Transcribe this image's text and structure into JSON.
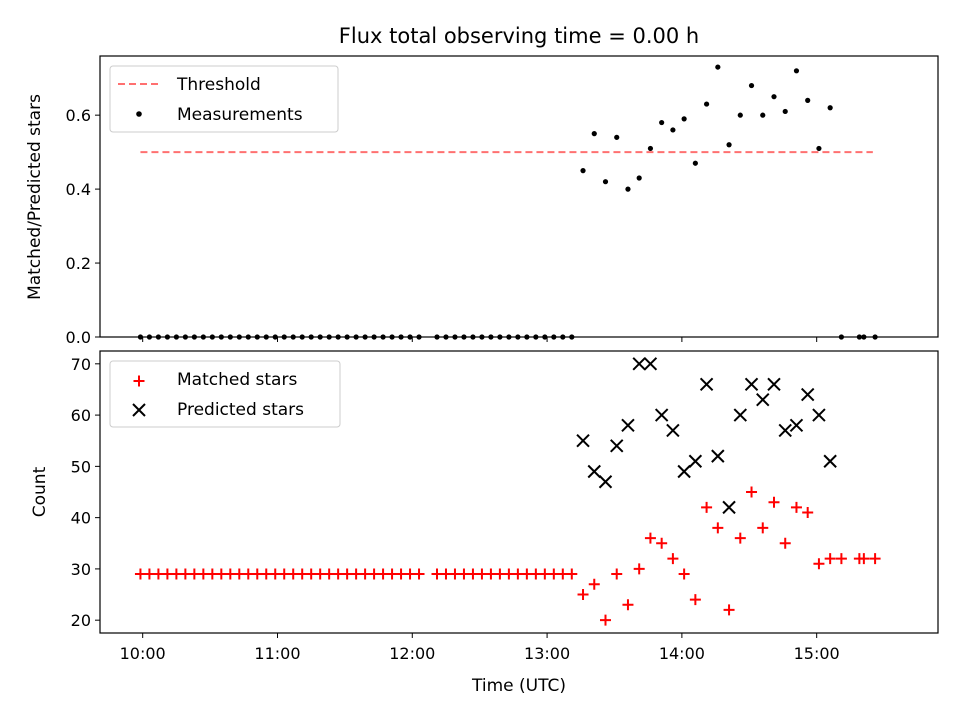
{
  "chart_data": [
    {
      "type": "scatter",
      "title": "Flux total observing time = 0.00 h",
      "xlabel": "",
      "ylabel": "Matched/Predicted stars",
      "xlim": [
        "09:41",
        "15:54"
      ],
      "ylim": [
        0,
        0.76
      ],
      "x_ticks": [],
      "y_ticks": [
        {
          "value": 0.0,
          "label": "0.0"
        },
        {
          "value": 0.2,
          "label": "0.2"
        },
        {
          "value": 0.4,
          "label": "0.4"
        },
        {
          "value": 0.6,
          "label": "0.6"
        }
      ],
      "legend": {
        "position": "upper-left",
        "entries": [
          "Threshold",
          "Measurements"
        ]
      },
      "threshold": {
        "name": "Threshold",
        "value": 0.5,
        "x_range": [
          "09:59",
          "15:25"
        ],
        "color": "#ff7070",
        "style": "dashed"
      },
      "series": [
        {
          "name": "Measurements",
          "marker": "dot",
          "color": "#000000",
          "points": [
            [
              "09:59",
              0
            ],
            [
              "10:03",
              0
            ],
            [
              "10:07",
              0
            ],
            [
              "10:11",
              0
            ],
            [
              "10:15",
              0
            ],
            [
              "10:19",
              0
            ],
            [
              "10:23",
              0
            ],
            [
              "10:27",
              0
            ],
            [
              "10:31",
              0
            ],
            [
              "10:35",
              0
            ],
            [
              "10:39",
              0
            ],
            [
              "10:43",
              0
            ],
            [
              "10:47",
              0
            ],
            [
              "10:51",
              0
            ],
            [
              "10:55",
              0
            ],
            [
              "10:59",
              0
            ],
            [
              "11:03",
              0
            ],
            [
              "11:07",
              0
            ],
            [
              "11:11",
              0
            ],
            [
              "11:15",
              0
            ],
            [
              "11:19",
              0
            ],
            [
              "11:23",
              0
            ],
            [
              "11:27",
              0
            ],
            [
              "11:31",
              0
            ],
            [
              "11:35",
              0
            ],
            [
              "11:39",
              0
            ],
            [
              "11:43",
              0
            ],
            [
              "11:47",
              0
            ],
            [
              "11:51",
              0
            ],
            [
              "11:55",
              0
            ],
            [
              "11:59",
              0
            ],
            [
              "12:03",
              0
            ],
            [
              "12:11",
              0
            ],
            [
              "12:15",
              0
            ],
            [
              "12:19",
              0
            ],
            [
              "12:23",
              0
            ],
            [
              "12:27",
              0
            ],
            [
              "12:31",
              0
            ],
            [
              "12:35",
              0
            ],
            [
              "12:39",
              0
            ],
            [
              "12:43",
              0
            ],
            [
              "12:47",
              0
            ],
            [
              "12:51",
              0
            ],
            [
              "12:55",
              0
            ],
            [
              "12:59",
              0
            ],
            [
              "13:03",
              0
            ],
            [
              "13:07",
              0
            ],
            [
              "13:11",
              0
            ],
            [
              "13:16",
              0.45
            ],
            [
              "13:21",
              0.55
            ],
            [
              "13:26",
              0.42
            ],
            [
              "13:31",
              0.54
            ],
            [
              "13:36",
              0.4
            ],
            [
              "13:41",
              0.43
            ],
            [
              "13:46",
              0.51
            ],
            [
              "13:51",
              0.58
            ],
            [
              "13:56",
              0.56
            ],
            [
              "14:01",
              0.59
            ],
            [
              "14:06",
              0.47
            ],
            [
              "14:11",
              0.63
            ],
            [
              "14:16",
              0.73
            ],
            [
              "14:21",
              0.52
            ],
            [
              "14:26",
              0.6
            ],
            [
              "14:31",
              0.68
            ],
            [
              "14:36",
              0.6
            ],
            [
              "14:41",
              0.65
            ],
            [
              "14:46",
              0.61
            ],
            [
              "14:51",
              0.72
            ],
            [
              "14:56",
              0.64
            ],
            [
              "15:01",
              0.51
            ],
            [
              "15:06",
              0.62
            ],
            [
              "15:11",
              0
            ],
            [
              "15:19",
              0
            ],
            [
              "15:21",
              0
            ],
            [
              "15:26",
              0
            ]
          ]
        }
      ]
    },
    {
      "type": "scatter",
      "title": "",
      "xlabel": "Time (UTC)",
      "ylabel": "Count",
      "xlim": [
        "09:41",
        "15:54"
      ],
      "ylim": [
        17.5,
        72.5
      ],
      "x_ticks": [
        {
          "value": "10:00",
          "label": "10:00"
        },
        {
          "value": "11:00",
          "label": "11:00"
        },
        {
          "value": "12:00",
          "label": "12:00"
        },
        {
          "value": "13:00",
          "label": "13:00"
        },
        {
          "value": "14:00",
          "label": "14:00"
        },
        {
          "value": "15:00",
          "label": "15:00"
        }
      ],
      "y_ticks": [
        {
          "value": 20,
          "label": "20"
        },
        {
          "value": 30,
          "label": "30"
        },
        {
          "value": 40,
          "label": "40"
        },
        {
          "value": 50,
          "label": "50"
        },
        {
          "value": 60,
          "label": "60"
        },
        {
          "value": 70,
          "label": "70"
        }
      ],
      "legend": {
        "position": "upper-left",
        "entries": [
          "Matched stars",
          "Predicted stars"
        ]
      },
      "series": [
        {
          "name": "Matched stars",
          "marker": "plus",
          "color": "#ff0000",
          "points": [
            [
              "09:59",
              29
            ],
            [
              "10:03",
              29
            ],
            [
              "10:07",
              29
            ],
            [
              "10:11",
              29
            ],
            [
              "10:15",
              29
            ],
            [
              "10:19",
              29
            ],
            [
              "10:23",
              29
            ],
            [
              "10:27",
              29
            ],
            [
              "10:31",
              29
            ],
            [
              "10:35",
              29
            ],
            [
              "10:39",
              29
            ],
            [
              "10:43",
              29
            ],
            [
              "10:47",
              29
            ],
            [
              "10:51",
              29
            ],
            [
              "10:55",
              29
            ],
            [
              "10:59",
              29
            ],
            [
              "11:03",
              29
            ],
            [
              "11:07",
              29
            ],
            [
              "11:11",
              29
            ],
            [
              "11:15",
              29
            ],
            [
              "11:19",
              29
            ],
            [
              "11:23",
              29
            ],
            [
              "11:27",
              29
            ],
            [
              "11:31",
              29
            ],
            [
              "11:35",
              29
            ],
            [
              "11:39",
              29
            ],
            [
              "11:43",
              29
            ],
            [
              "11:47",
              29
            ],
            [
              "11:51",
              29
            ],
            [
              "11:55",
              29
            ],
            [
              "11:59",
              29
            ],
            [
              "12:03",
              29
            ],
            [
              "12:11",
              29
            ],
            [
              "12:15",
              29
            ],
            [
              "12:19",
              29
            ],
            [
              "12:23",
              29
            ],
            [
              "12:27",
              29
            ],
            [
              "12:31",
              29
            ],
            [
              "12:35",
              29
            ],
            [
              "12:39",
              29
            ],
            [
              "12:43",
              29
            ],
            [
              "12:47",
              29
            ],
            [
              "12:51",
              29
            ],
            [
              "12:55",
              29
            ],
            [
              "12:59",
              29
            ],
            [
              "13:03",
              29
            ],
            [
              "13:07",
              29
            ],
            [
              "13:11",
              29
            ],
            [
              "13:16",
              25
            ],
            [
              "13:21",
              27
            ],
            [
              "13:26",
              20
            ],
            [
              "13:31",
              29
            ],
            [
              "13:36",
              23
            ],
            [
              "13:41",
              30
            ],
            [
              "13:46",
              36
            ],
            [
              "13:51",
              35
            ],
            [
              "13:56",
              32
            ],
            [
              "14:01",
              29
            ],
            [
              "14:06",
              24
            ],
            [
              "14:11",
              42
            ],
            [
              "14:16",
              38
            ],
            [
              "14:21",
              22
            ],
            [
              "14:26",
              36
            ],
            [
              "14:31",
              45
            ],
            [
              "14:36",
              38
            ],
            [
              "14:41",
              43
            ],
            [
              "14:46",
              35
            ],
            [
              "14:51",
              42
            ],
            [
              "14:56",
              41
            ],
            [
              "15:01",
              31
            ],
            [
              "15:06",
              32
            ],
            [
              "15:11",
              32
            ],
            [
              "15:19",
              32
            ],
            [
              "15:21",
              32
            ],
            [
              "15:26",
              32
            ]
          ]
        },
        {
          "name": "Predicted stars",
          "marker": "x",
          "color": "#000000",
          "points": [
            [
              "13:16",
              55
            ],
            [
              "13:21",
              49
            ],
            [
              "13:26",
              47
            ],
            [
              "13:31",
              54
            ],
            [
              "13:36",
              58
            ],
            [
              "13:41",
              70
            ],
            [
              "13:46",
              70
            ],
            [
              "13:51",
              60
            ],
            [
              "13:56",
              57
            ],
            [
              "14:01",
              49
            ],
            [
              "14:06",
              51
            ],
            [
              "14:11",
              66
            ],
            [
              "14:16",
              52
            ],
            [
              "14:21",
              42
            ],
            [
              "14:26",
              60
            ],
            [
              "14:31",
              66
            ],
            [
              "14:36",
              63
            ],
            [
              "14:41",
              66
            ],
            [
              "14:46",
              57
            ],
            [
              "14:51",
              58
            ],
            [
              "14:56",
              64
            ],
            [
              "15:01",
              60
            ],
            [
              "15:06",
              51
            ]
          ]
        }
      ]
    }
  ]
}
